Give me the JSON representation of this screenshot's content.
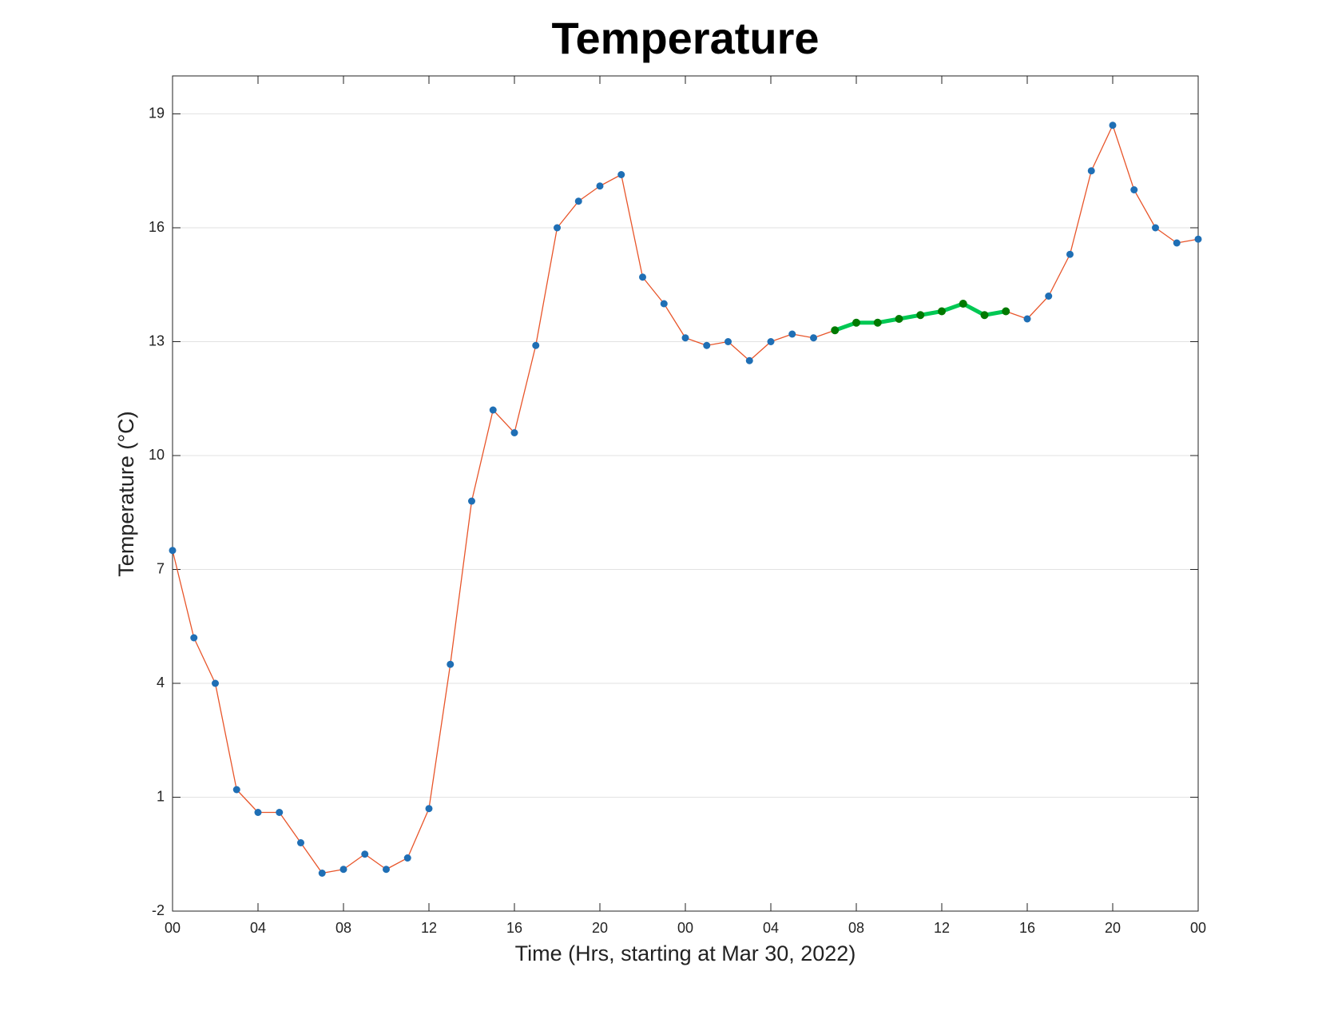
{
  "chart_data": {
    "type": "line",
    "title": "Temperature",
    "x_label": "Time (Hrs, starting at Mar 30, 2022)",
    "y_label": "Temperature (°C)",
    "x": [
      0,
      1,
      2,
      3,
      4,
      5,
      6,
      7,
      8,
      9,
      10,
      11,
      12,
      13,
      14,
      15,
      16,
      17,
      18,
      19,
      20,
      21,
      22,
      23,
      24,
      25,
      26,
      27,
      28,
      29,
      30,
      31,
      32,
      33,
      34,
      35,
      36,
      37,
      38,
      39,
      40,
      41,
      42,
      43,
      44,
      45,
      46,
      47,
      48
    ],
    "series": [
      {
        "color": "#e8552a",
        "marker_color": "#1f6fb5",
        "values": [
          7.5,
          5.2,
          4.0,
          1.2,
          0.6,
          0.6,
          -0.2,
          -1.0,
          -0.9,
          -0.5,
          -0.9,
          -0.6,
          0.7,
          4.5,
          8.8,
          11.2,
          10.6,
          12.9,
          16.0,
          16.7,
          17.1,
          17.4,
          14.7,
          14.0,
          13.1,
          12.9,
          13.0,
          12.5,
          13.0,
          13.2,
          13.1,
          13.3,
          13.5,
          13.5,
          13.6,
          13.7,
          13.8,
          14.0,
          13.7,
          13.8,
          13.6,
          14.2,
          15.3,
          17.5,
          18.7,
          17.0,
          16.0,
          15.6,
          15.7
        ]
      },
      {
        "color": "#00c853",
        "marker_color": "#007a00",
        "values": [
          null,
          null,
          null,
          null,
          null,
          null,
          null,
          null,
          null,
          null,
          null,
          null,
          null,
          null,
          null,
          null,
          null,
          null,
          null,
          null,
          null,
          null,
          null,
          null,
          null,
          null,
          null,
          null,
          null,
          null,
          null,
          13.3,
          13.5,
          13.5,
          13.6,
          13.7,
          13.8,
          14.0,
          13.7,
          13.8,
          null,
          null,
          null,
          null,
          null,
          null,
          null,
          null,
          null
        ]
      }
    ],
    "xlim": [
      0,
      48
    ],
    "xticks": [
      {
        "value": 0,
        "label": "00"
      },
      {
        "value": 4,
        "label": "04"
      },
      {
        "value": 8,
        "label": "08"
      },
      {
        "value": 12,
        "label": "12"
      },
      {
        "value": 16,
        "label": "16"
      },
      {
        "value": 20,
        "label": "20"
      },
      {
        "value": 24,
        "label": "00"
      },
      {
        "value": 28,
        "label": "04"
      },
      {
        "value": 32,
        "label": "08"
      },
      {
        "value": 36,
        "label": "12"
      },
      {
        "value": 40,
        "label": "16"
      },
      {
        "value": 44,
        "label": "20"
      },
      {
        "value": 48,
        "label": "00"
      }
    ],
    "ylim": [
      -2,
      20
    ],
    "yticks": [
      -2,
      1,
      4,
      7,
      10,
      13,
      16,
      19
    ],
    "grid": true
  }
}
